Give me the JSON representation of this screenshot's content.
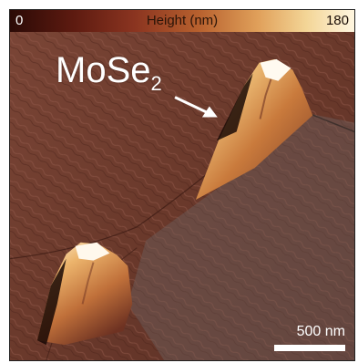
{
  "colorbar": {
    "min_label": "0",
    "title": "Height (nm)",
    "max_label": "180"
  },
  "annotation": {
    "label_main": "MoSe",
    "label_sub": "2"
  },
  "scalebar": {
    "label": "500 nm"
  },
  "colors": {
    "bar_low": "#2b0a06",
    "bar_mid": "#b8612e",
    "bar_high": "#fff6e0",
    "substrate": "#6d3a2c"
  }
}
